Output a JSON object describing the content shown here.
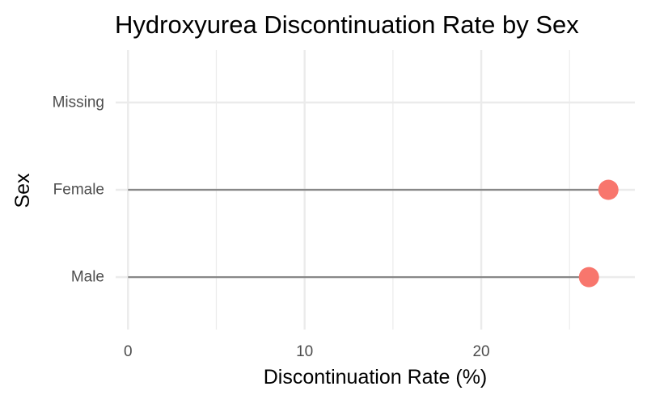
{
  "chart_data": {
    "type": "lollipop",
    "title": "Hydroxyurea Discontinuation Rate by Sex",
    "xlabel": "Discontinuation Rate (%)",
    "ylabel": "Sex",
    "categories": [
      "Male",
      "Female",
      "Missing"
    ],
    "values": [
      26.1,
      27.2,
      null
    ],
    "xlim": [
      -0.7,
      28.7
    ],
    "x_ticks": [
      0,
      10,
      20
    ],
    "grid": true,
    "colors": {
      "point": "#f8766d",
      "segment": "#888888",
      "grid": "#ebebeb"
    }
  }
}
